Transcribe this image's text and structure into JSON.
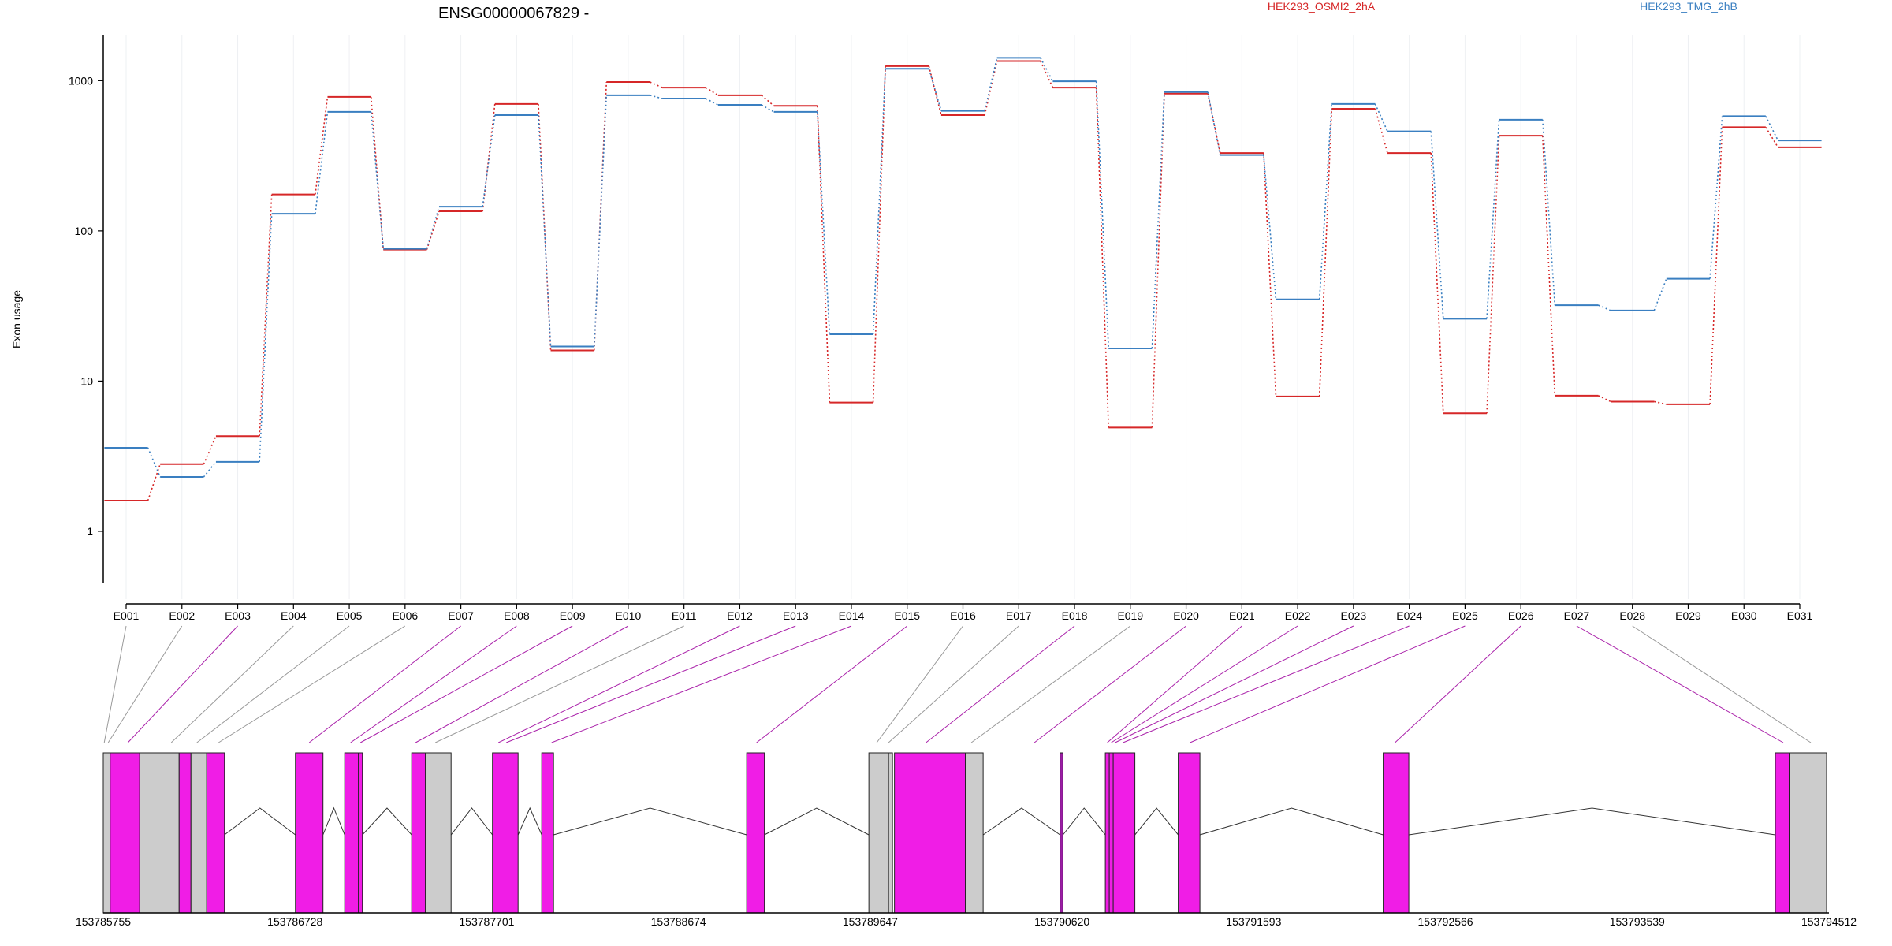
{
  "chart_data": {
    "type": "line",
    "title": "ENSG00000067829 -",
    "ylabel": "Exon usage",
    "yscale": "log",
    "ylim": [
      0.45,
      2000
    ],
    "yticks": [
      1,
      10,
      100,
      1000
    ],
    "grid": "vertical",
    "legend_position": "top-right",
    "categories": [
      "E001",
      "E002",
      "E003",
      "E004",
      "E005",
      "E006",
      "E007",
      "E008",
      "E009",
      "E010",
      "E011",
      "E012",
      "E013",
      "E014",
      "E015",
      "E016",
      "E017",
      "E018",
      "E019",
      "E020",
      "E021",
      "E022",
      "E023",
      "E024",
      "E025",
      "E026",
      "E027",
      "E028",
      "E029",
      "E030",
      "E031"
    ],
    "series": [
      {
        "name": "HEK293_OSMI2_2hA",
        "color": "#d62728",
        "values": [
          1.6,
          2.8,
          4.3,
          175,
          780,
          75,
          135,
          700,
          16,
          980,
          900,
          800,
          680,
          7.2,
          1250,
          590,
          1350,
          900,
          4.9,
          820,
          330,
          7.9,
          650,
          330,
          6.1,
          430,
          8.0,
          7.3,
          7.0,
          490,
          360
        ]
      },
      {
        "name": "HEK293_TMG_2hB",
        "color": "#3a7fc1",
        "values": [
          3.6,
          2.3,
          2.9,
          130,
          620,
          76,
          145,
          590,
          17,
          800,
          760,
          690,
          620,
          20.5,
          1200,
          630,
          1420,
          990,
          16.5,
          840,
          320,
          35,
          700,
          460,
          26,
          550,
          32,
          29.5,
          48,
          580,
          400
        ]
      }
    ],
    "gene_model": {
      "coord_labels": [
        "153785755",
        "153786728",
        "153787701",
        "153788674",
        "153789647",
        "153790620",
        "153791593",
        "153792566",
        "153793539",
        "153794512"
      ],
      "exons": [
        {
          "start": 153785755,
          "end": 153785790,
          "color": "#cccccc"
        },
        {
          "start": 153785790,
          "end": 153785940,
          "color": "#f01de6"
        },
        {
          "start": 153785940,
          "end": 153786140,
          "color": "#cccccc"
        },
        {
          "start": 153786140,
          "end": 153786200,
          "color": "#f01de6"
        },
        {
          "start": 153786200,
          "end": 153786280,
          "color": "#cccccc"
        },
        {
          "start": 153786280,
          "end": 153786370,
          "color": "#f01de6"
        },
        {
          "start": 153786730,
          "end": 153786870,
          "color": "#f01de6"
        },
        {
          "start": 153786980,
          "end": 153787050,
          "color": "#f01de6"
        },
        {
          "start": 153787050,
          "end": 153787070,
          "color": "#f01de6"
        },
        {
          "start": 153787320,
          "end": 153787390,
          "color": "#f01de6"
        },
        {
          "start": 153787390,
          "end": 153787520,
          "color": "#cccccc"
        },
        {
          "start": 153787730,
          "end": 153787860,
          "color": "#f01de6"
        },
        {
          "start": 153787980,
          "end": 153788040,
          "color": "#f01de6"
        },
        {
          "start": 153789020,
          "end": 153789110,
          "color": "#f01de6"
        },
        {
          "start": 153789640,
          "end": 153789740,
          "color": "#cccccc"
        },
        {
          "start": 153789740,
          "end": 153789760,
          "color": "#cccccc"
        },
        {
          "start": 153789770,
          "end": 153790130,
          "color": "#f01de6"
        },
        {
          "start": 153790130,
          "end": 153790220,
          "color": "#cccccc"
        },
        {
          "start": 153790610,
          "end": 153790625,
          "color": "#9c1ca6"
        },
        {
          "start": 153790840,
          "end": 153790860,
          "color": "#f01de6"
        },
        {
          "start": 153790860,
          "end": 153790880,
          "color": "#f01de6"
        },
        {
          "start": 153790880,
          "end": 153790990,
          "color": "#f01de6"
        },
        {
          "start": 153791210,
          "end": 153791320,
          "color": "#f01de6"
        },
        {
          "start": 153792250,
          "end": 153792380,
          "color": "#f01de6"
        },
        {
          "start": 153794240,
          "end": 153794310,
          "color": "#f01de6"
        },
        {
          "start": 153794310,
          "end": 153794500,
          "color": "#cccccc"
        }
      ],
      "introns": [
        [
          153786370,
          153786730
        ],
        [
          153786870,
          153786980
        ],
        [
          153787070,
          153787320
        ],
        [
          153787520,
          153787730
        ],
        [
          153787860,
          153787980
        ],
        [
          153788040,
          153789020
        ],
        [
          153789110,
          153789640
        ],
        [
          153790220,
          153790610
        ],
        [
          153790625,
          153790840
        ],
        [
          153790990,
          153791210
        ],
        [
          153791320,
          153792250
        ],
        [
          153792380,
          153794240
        ]
      ],
      "connectors": [
        {
          "pos": 153785760,
          "color": "#999999"
        },
        {
          "pos": 153785780,
          "color": "#999999"
        },
        {
          "pos": 153785880,
          "color": "#aa22aa"
        },
        {
          "pos": 153786100,
          "color": "#999999"
        },
        {
          "pos": 153786230,
          "color": "#999999"
        },
        {
          "pos": 153786340,
          "color": "#999999"
        },
        {
          "pos": 153786800,
          "color": "#aa22aa"
        },
        {
          "pos": 153787010,
          "color": "#aa22aa"
        },
        {
          "pos": 153787060,
          "color": "#aa22aa"
        },
        {
          "pos": 153787340,
          "color": "#aa22aa"
        },
        {
          "pos": 153787440,
          "color": "#999999"
        },
        {
          "pos": 153787760,
          "color": "#aa22aa"
        },
        {
          "pos": 153787800,
          "color": "#aa22aa"
        },
        {
          "pos": 153788030,
          "color": "#aa22aa"
        },
        {
          "pos": 153789070,
          "color": "#aa22aa"
        },
        {
          "pos": 153789680,
          "color": "#999999"
        },
        {
          "pos": 153789740,
          "color": "#999999"
        },
        {
          "pos": 153789930,
          "color": "#aa22aa"
        },
        {
          "pos": 153790160,
          "color": "#999999"
        },
        {
          "pos": 153790480,
          "color": "#aa22aa"
        },
        {
          "pos": 153790850,
          "color": "#aa22aa"
        },
        {
          "pos": 153790870,
          "color": "#aa22aa"
        },
        {
          "pos": 153790890,
          "color": "#aa22aa"
        },
        {
          "pos": 153790930,
          "color": "#aa22aa"
        },
        {
          "pos": 153791270,
          "color": "#aa22aa"
        },
        {
          "pos": 153792310,
          "color": "#aa22aa"
        },
        {
          "pos": 153794280,
          "color": "#aa22aa"
        },
        {
          "pos": 153794420,
          "color": "#999999"
        }
      ]
    }
  }
}
